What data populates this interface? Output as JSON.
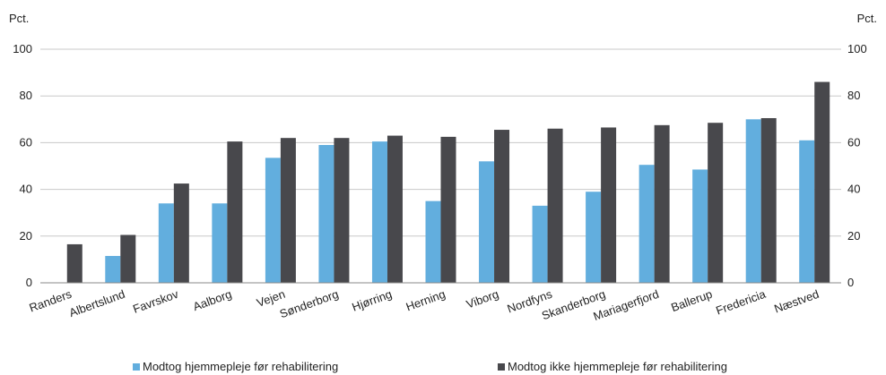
{
  "chart_data": {
    "type": "bar",
    "title": "",
    "y_unit_left": "Pct.",
    "y_unit_right": "Pct.",
    "ylim": [
      0,
      100
    ],
    "yticks": [
      0,
      20,
      40,
      60,
      80,
      100
    ],
    "grid": true,
    "legend_position": "bottom",
    "categories": [
      "Randers",
      "Albertslund",
      "Favrskov",
      "Aalborg",
      "Vejen",
      "Sønderborg",
      "Hjørring",
      "Herning",
      "Viborg",
      "Nordfyns",
      "Skanderborg",
      "Mariagerfjord",
      "Ballerup",
      "Fredericia",
      "Næstved"
    ],
    "series": [
      {
        "name": "Modtog hjemmepleje før rehabilitering",
        "color": "#62aede",
        "values": [
          0,
          11.5,
          34,
          34,
          53.5,
          59,
          60.5,
          35,
          52,
          33,
          39,
          50.5,
          48.5,
          70,
          61
        ]
      },
      {
        "name": "Modtog ikke hjemmepleje før rehabilitering",
        "color": "#48484c",
        "values": [
          16.5,
          20.5,
          42.5,
          60.5,
          62,
          62,
          63,
          62.5,
          65.5,
          66,
          66.5,
          67.5,
          68.5,
          70.5,
          86
        ]
      }
    ]
  }
}
